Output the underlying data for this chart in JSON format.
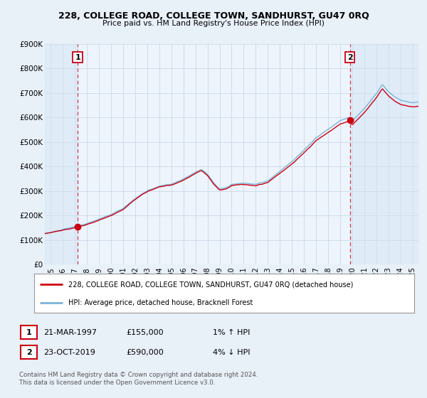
{
  "title_line1": "228, COLLEGE ROAD, COLLEGE TOWN, SANDHURST, GU47 0RQ",
  "title_line2": "Price paid vs. HM Land Registry's House Price Index (HPI)",
  "ylim": [
    0,
    900000
  ],
  "yticks": [
    0,
    100000,
    200000,
    300000,
    400000,
    500000,
    600000,
    700000,
    800000,
    900000
  ],
  "ytick_labels": [
    "£0",
    "£100K",
    "£200K",
    "£300K",
    "£400K",
    "£500K",
    "£600K",
    "£700K",
    "£800K",
    "£900K"
  ],
  "xlim_start": 1994.5,
  "xlim_end": 2025.5,
  "purchase1_year": 1997.22,
  "purchase1_price": 155000,
  "purchase1_label": "1",
  "purchase2_year": 2019.81,
  "purchase2_price": 590000,
  "purchase2_label": "2",
  "line_color_red": "#cc0011",
  "line_color_blue": "#7ab4d8",
  "marker_color": "#cc0011",
  "grid_color": "#c8d8e8",
  "background_color": "#e8f0f8",
  "plot_bg_color": "#eef4fb",
  "legend_label1": "228, COLLEGE ROAD, COLLEGE TOWN, SANDHURST, GU47 0RQ (detached house)",
  "legend_label2": "HPI: Average price, detached house, Bracknell Forest",
  "annotation1_date": "21-MAR-1997",
  "annotation1_price": "£155,000",
  "annotation1_hpi": "1% ↑ HPI",
  "annotation2_date": "23-OCT-2019",
  "annotation2_price": "£590,000",
  "annotation2_hpi": "4% ↓ HPI",
  "footnote_line1": "Contains HM Land Registry data © Crown copyright and database right 2024.",
  "footnote_line2": "This data is licensed under the Open Government Licence v3.0."
}
